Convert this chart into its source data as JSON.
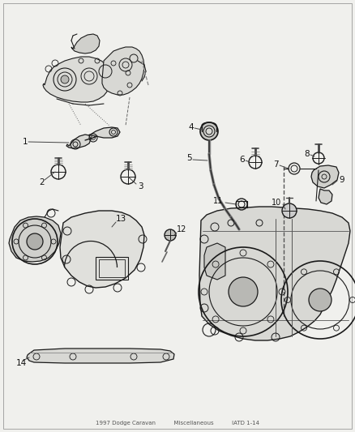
{
  "bg_color": "#f0f0ed",
  "line_color": "#1a1a1a",
  "label_color": "#111111",
  "fig_width": 4.38,
  "fig_height": 5.33,
  "dpi": 100,
  "footer_text": "1997 Dodge Caravan          Miscellaneous          IATD 1-14",
  "footer_color": "#555555",
  "footer_fontsize": 5.0,
  "label_fontsize": 7.5,
  "border_color": "#999999"
}
